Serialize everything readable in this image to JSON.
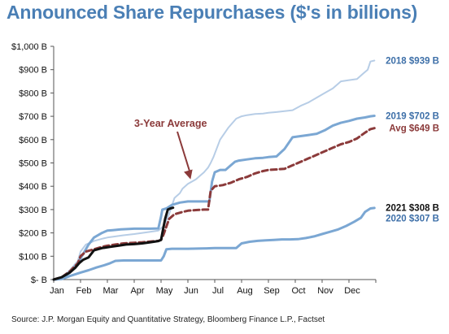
{
  "chart_data": {
    "type": "line",
    "title": "Announced Share Repurchases ($'s in billions)",
    "source": "Source: J.P. Morgan Equity and Quantitative Strategy, Bloomberg Finance L.P., Factset",
    "x_tick_labels": [
      "Jan",
      "Feb",
      "Mar",
      "Apr",
      "May",
      "Jun",
      "Jul",
      "Aug",
      "Sep",
      "Oct",
      "Nov",
      "Dec"
    ],
    "y_tick_labels": [
      "$- B",
      "$100 B",
      "$200 B",
      "$300 B",
      "$400 B",
      "$500 B",
      "$600 B",
      "$700 B",
      "$800 B",
      "$900 B",
      "$1,000 B"
    ],
    "ylim": [
      0,
      1000
    ],
    "xlim": [
      0,
      12
    ],
    "grid": false,
    "annotation": {
      "text": "3-Year Average",
      "points_to_month": 5.1,
      "points_to_value": 430
    },
    "series": [
      {
        "name": "2018",
        "end_label": "2018 $939 B",
        "color": "#b7cde6",
        "width": 2,
        "dash": "",
        "x": [
          0,
          0.3,
          0.6,
          0.9,
          1.0,
          1.2,
          1.5,
          1.8,
          2.0,
          2.3,
          2.6,
          3.0,
          3.3,
          3.6,
          3.9,
          4.0,
          4.1,
          4.3,
          4.5,
          4.7,
          4.8,
          5.0,
          5.3,
          5.6,
          5.75,
          5.85,
          5.95,
          6.2,
          6.5,
          6.8,
          7.0,
          7.2,
          7.5,
          7.8,
          8.0,
          8.3,
          8.6,
          8.9,
          9.2,
          9.5,
          9.8,
          10.1,
          10.4,
          10.7,
          11.0,
          11.3,
          11.5,
          11.7,
          11.8,
          11.95
        ],
        "y": [
          0,
          10,
          40,
          80,
          120,
          150,
          165,
          175,
          180,
          185,
          190,
          195,
          200,
          205,
          210,
          220,
          230,
          280,
          350,
          370,
          390,
          410,
          430,
          460,
          480,
          500,
          525,
          600,
          650,
          690,
          700,
          705,
          710,
          712,
          715,
          718,
          722,
          726,
          745,
          760,
          780,
          800,
          820,
          850,
          855,
          860,
          880,
          900,
          935,
          939
        ]
      },
      {
        "name": "2019",
        "end_label": "2019 $702 B",
        "color": "#7ba7d3",
        "width": 3,
        "dash": "",
        "x": [
          0,
          0.3,
          0.6,
          0.9,
          1.1,
          1.3,
          1.5,
          1.8,
          2.0,
          2.2,
          2.5,
          2.8,
          3.0,
          3.3,
          3.6,
          3.9,
          4.0,
          4.05,
          4.2,
          4.4,
          4.7,
          5.0,
          5.3,
          5.6,
          5.8,
          5.9,
          6.0,
          6.2,
          6.4,
          6.6,
          6.75,
          6.9,
          7.2,
          7.5,
          7.8,
          8.0,
          8.3,
          8.6,
          8.9,
          9.2,
          9.5,
          9.8,
          10.1,
          10.4,
          10.7,
          11.0,
          11.3,
          11.6,
          11.8,
          11.95
        ],
        "y": [
          0,
          5,
          30,
          70,
          110,
          150,
          180,
          200,
          210,
          212,
          215,
          217,
          218,
          218,
          218,
          219,
          270,
          300,
          305,
          320,
          330,
          335,
          335,
          335,
          335,
          420,
          460,
          470,
          470,
          490,
          505,
          510,
          515,
          520,
          522,
          525,
          528,
          560,
          610,
          615,
          620,
          625,
          640,
          660,
          672,
          680,
          690,
          695,
          700,
          702
        ]
      },
      {
        "name": "Avg",
        "end_label": "Avg $649 B",
        "color": "#8b3a3a",
        "width": 3,
        "dash": "7,4",
        "x": [
          0,
          0.3,
          0.6,
          0.9,
          1.0,
          1.2,
          1.5,
          1.8,
          2.0,
          2.3,
          2.6,
          3.0,
          3.3,
          3.6,
          3.9,
          4.0,
          4.1,
          4.3,
          4.5,
          4.8,
          5.0,
          5.3,
          5.6,
          5.75,
          5.85,
          6.0,
          6.3,
          6.6,
          6.9,
          7.2,
          7.5,
          7.8,
          8.0,
          8.3,
          8.6,
          8.9,
          9.2,
          9.5,
          9.8,
          10.1,
          10.4,
          10.7,
          11.0,
          11.3,
          11.6,
          11.8,
          11.95
        ],
        "y": [
          0,
          10,
          35,
          70,
          100,
          120,
          130,
          140,
          145,
          150,
          155,
          158,
          160,
          163,
          166,
          170,
          195,
          260,
          280,
          290,
          295,
          298,
          300,
          300,
          380,
          400,
          405,
          415,
          430,
          440,
          455,
          465,
          470,
          472,
          475,
          490,
          505,
          520,
          535,
          550,
          565,
          580,
          590,
          605,
          630,
          645,
          649
        ]
      },
      {
        "name": "2020",
        "end_label": "2020 $307 B",
        "color": "#7ba7d3",
        "width": 3,
        "dash": "",
        "x": [
          0,
          0.3,
          0.6,
          1.0,
          1.3,
          1.6,
          1.9,
          2.1,
          2.3,
          2.6,
          3.0,
          3.4,
          3.8,
          4.0,
          4.1,
          4.2,
          4.4,
          4.7,
          5.0,
          5.5,
          6.0,
          6.5,
          6.8,
          7.0,
          7.3,
          7.6,
          7.9,
          8.2,
          8.5,
          8.8,
          9.1,
          9.4,
          9.7,
          10.0,
          10.3,
          10.6,
          10.9,
          11.2,
          11.45,
          11.6,
          11.8,
          11.95
        ],
        "y": [
          0,
          2,
          15,
          30,
          40,
          52,
          62,
          70,
          80,
          82,
          82,
          82,
          82,
          82,
          100,
          130,
          132,
          132,
          132,
          133,
          135,
          135,
          135,
          155,
          162,
          166,
          168,
          170,
          172,
          172,
          173,
          178,
          185,
          195,
          205,
          215,
          230,
          248,
          265,
          290,
          305,
          307
        ]
      },
      {
        "name": "2021",
        "end_label": "2021 $308 B",
        "color": "#111111",
        "width": 3,
        "dash": "",
        "x": [
          0,
          0.3,
          0.6,
          0.8,
          0.95,
          1.1,
          1.3,
          1.5,
          1.8,
          2.1,
          2.4,
          2.7,
          3.0,
          3.3,
          3.6,
          3.9,
          4.0,
          4.05,
          4.15,
          4.25,
          4.35,
          4.45
        ],
        "y": [
          0,
          10,
          30,
          50,
          70,
          85,
          95,
          125,
          135,
          140,
          145,
          150,
          152,
          155,
          160,
          165,
          170,
          200,
          260,
          300,
          305,
          308
        ]
      }
    ]
  }
}
